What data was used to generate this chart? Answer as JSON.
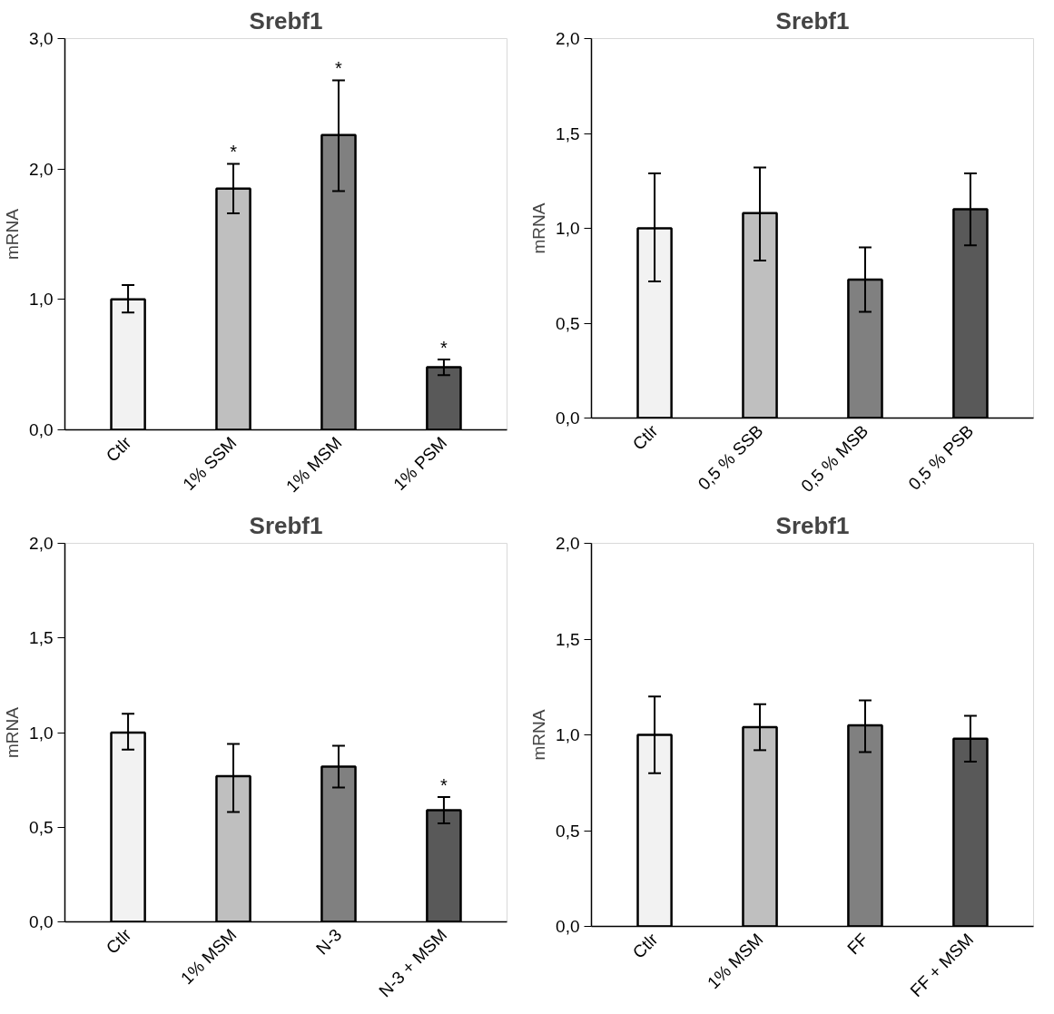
{
  "chart_data": [
    {
      "type": "bar",
      "title": "Srebf1",
      "ylabel": "mRNA",
      "categories": [
        "Ctlr",
        "1% SSM",
        "1% MSM",
        "1% PSM"
      ],
      "values": [
        1.0,
        1.85,
        2.26,
        0.48
      ],
      "colors": [
        "#f2f2f2",
        "#bfbfbf",
        "#808080",
        "#595959"
      ],
      "errors": [
        [
          0.9,
          1.11
        ],
        [
          1.66,
          2.04
        ],
        [
          1.83,
          2.68
        ],
        [
          0.42,
          0.54
        ]
      ],
      "ylim": [
        0,
        3
      ],
      "yticks": [
        {
          "value": 0,
          "label": "0,0"
        },
        {
          "value": 1,
          "label": "1,0"
        },
        {
          "value": 2,
          "label": "2,0"
        },
        {
          "value": 3,
          "label": "3,0"
        }
      ],
      "grid": false,
      "annotations": [
        {
          "text": "*",
          "x": "1% SSM",
          "y": 2.04
        },
        {
          "text": "*",
          "x": "1% MSM",
          "y": 2.68
        },
        {
          "text": "*",
          "x": "1% PSM",
          "y": 0.54
        }
      ]
    },
    {
      "type": "bar",
      "title": "Srebf1",
      "ylabel": "mRNA",
      "categories": [
        "Ctlr",
        "0,5 % SSB",
        "0,5 % MSB",
        "0,5 % PSB"
      ],
      "values": [
        1.0,
        1.08,
        0.73,
        1.1
      ],
      "colors": [
        "#f2f2f2",
        "#bfbfbf",
        "#808080",
        "#595959"
      ],
      "errors": [
        [
          0.72,
          1.29
        ],
        [
          0.83,
          1.32
        ],
        [
          0.56,
          0.9
        ],
        [
          0.91,
          1.29
        ]
      ],
      "ylim": [
        0,
        2
      ],
      "yticks": [
        {
          "value": 0,
          "label": "0,0"
        },
        {
          "value": 0.5,
          "label": "0,5"
        },
        {
          "value": 1,
          "label": "1,0"
        },
        {
          "value": 1.5,
          "label": "1,5"
        },
        {
          "value": 2,
          "label": "2,0"
        }
      ],
      "grid": false
    },
    {
      "type": "bar",
      "title": "Srebf1",
      "ylabel": "mRNA",
      "categories": [
        "Ctlr",
        "1% MSM",
        "N-3",
        "N-3 + MSM"
      ],
      "values": [
        1.0,
        0.77,
        0.82,
        0.59
      ],
      "colors": [
        "#f2f2f2",
        "#bfbfbf",
        "#808080",
        "#595959"
      ],
      "errors": [
        [
          0.91,
          1.1
        ],
        [
          0.58,
          0.94
        ],
        [
          0.71,
          0.93
        ],
        [
          0.52,
          0.66
        ]
      ],
      "ylim": [
        0,
        2
      ],
      "yticks": [
        {
          "value": 0,
          "label": "0,0"
        },
        {
          "value": 0.5,
          "label": "0,5"
        },
        {
          "value": 1,
          "label": "1,0"
        },
        {
          "value": 1.5,
          "label": "1,5"
        },
        {
          "value": 2,
          "label": "2,0"
        }
      ],
      "grid": false,
      "annotations": [
        {
          "text": "*",
          "x": "N-3 + MSM",
          "y": 0.66
        }
      ]
    },
    {
      "type": "bar",
      "title": "Srebf1",
      "ylabel": "mRNA",
      "categories": [
        "Ctlr",
        "1% MSM",
        "FF",
        "FF + MSM"
      ],
      "values": [
        1.0,
        1.04,
        1.05,
        0.98
      ],
      "colors": [
        "#f2f2f2",
        "#bfbfbf",
        "#808080",
        "#595959"
      ],
      "errors": [
        [
          0.8,
          1.2
        ],
        [
          0.92,
          1.16
        ],
        [
          0.91,
          1.18
        ],
        [
          0.86,
          1.1
        ]
      ],
      "ylim": [
        0,
        2
      ],
      "yticks": [
        {
          "value": 0,
          "label": "0,0"
        },
        {
          "value": 0.5,
          "label": "0,5"
        },
        {
          "value": 1,
          "label": "1,0"
        },
        {
          "value": 1.5,
          "label": "1,5"
        },
        {
          "value": 2,
          "label": "2,0"
        }
      ],
      "grid": false
    }
  ]
}
